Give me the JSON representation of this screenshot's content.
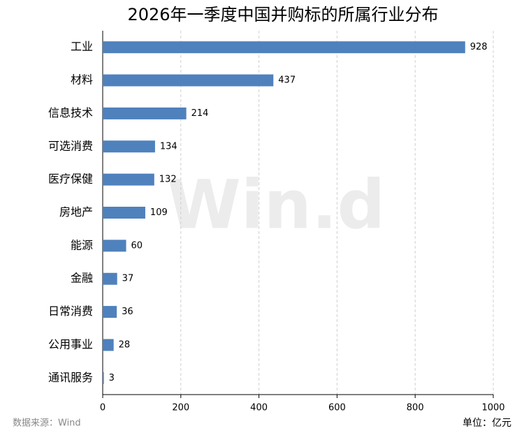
{
  "chart_data": {
    "type": "bar",
    "orientation": "horizontal",
    "title": "2026年一季度中国并购标的所属行业分布",
    "categories": [
      "工业",
      "材料",
      "信息技术",
      "可选消费",
      "医疗保健",
      "房地产",
      "能源",
      "金融",
      "日常消费",
      "公用事业",
      "通讯服务"
    ],
    "values": [
      928,
      437,
      214,
      134,
      132,
      109,
      60,
      37,
      36,
      28,
      3
    ],
    "color": "#4f81bd",
    "xlim": [
      0,
      1000
    ],
    "xticks": [
      0,
      200,
      400,
      600,
      800,
      1000
    ],
    "grid": true,
    "source": "数据来源：Wind",
    "unit": "单位：亿元",
    "watermark": "Win.d"
  }
}
